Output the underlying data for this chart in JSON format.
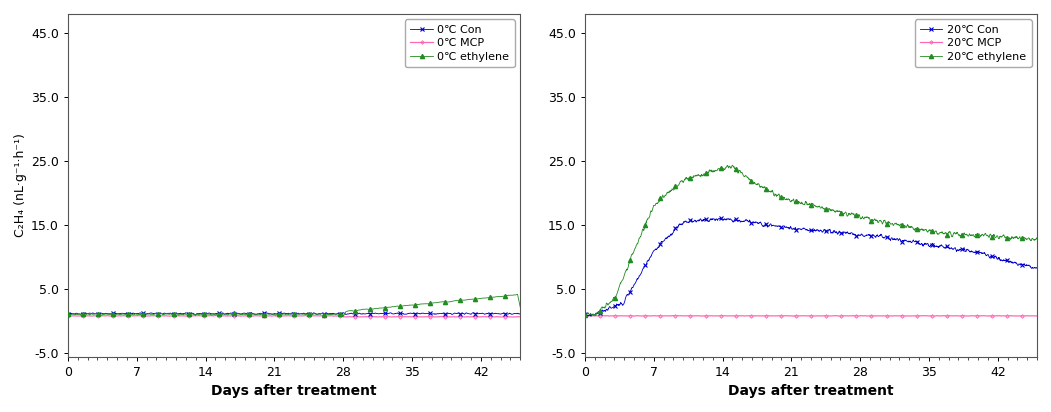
{
  "left_panel": {
    "legend_labels": [
      "0℃ Con",
      "0℃ MCP",
      "0℃ ethylene"
    ],
    "con_color": "#0000CD",
    "mcp_color": "#FF69B4",
    "eth_color": "#228B22",
    "ylim": [
      -5.5,
      48.0
    ],
    "yticks": [
      -5.0,
      5.0,
      15.0,
      25.0,
      35.0,
      45.0
    ],
    "xticks": [
      0,
      7,
      14,
      21,
      28,
      35,
      42
    ]
  },
  "right_panel": {
    "legend_labels": [
      "20℃ Con",
      "20℃ MCP",
      "20℃ ethylene"
    ],
    "con_color": "#0000CD",
    "mcp_color": "#FF69B4",
    "eth_color": "#228B22",
    "ylim": [
      -5.5,
      48.0
    ],
    "yticks": [
      -5.0,
      5.0,
      15.0,
      25.0,
      35.0,
      45.0
    ],
    "xticks": [
      0,
      7,
      14,
      21,
      28,
      35,
      42
    ]
  },
  "xlabel": "Days after treatment",
  "ylabel": "C₂H₄ (nL·g⁻¹·h⁻¹)",
  "background_color": "#ffffff",
  "plot_bg_color": "#ffffff",
  "x_max": 46,
  "noise_scale_low": 0.08,
  "noise_scale_high": 0.35,
  "lw": 0.6,
  "marker_size": 2.5
}
